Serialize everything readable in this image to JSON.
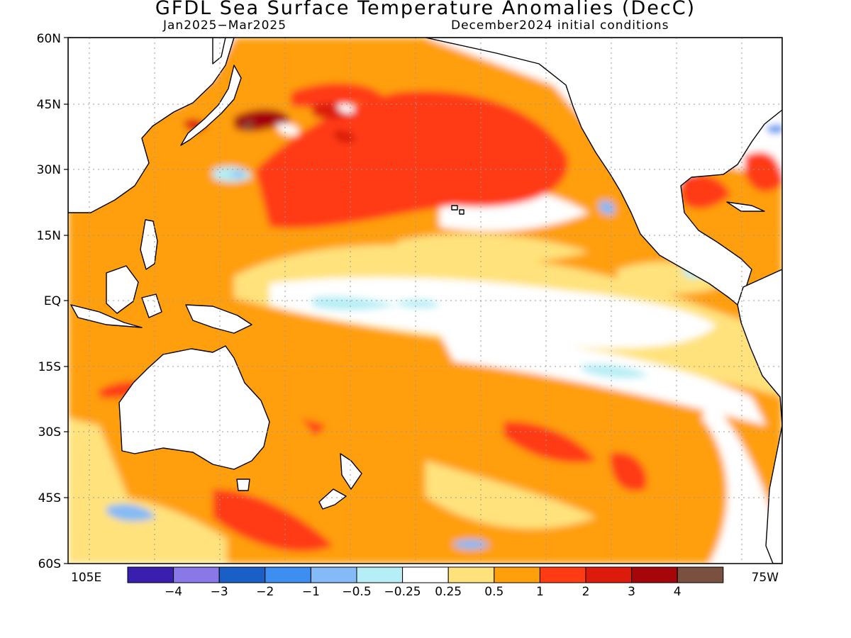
{
  "header": {
    "title": "GFDL Sea Surface Temperature Anomalies (DecC)",
    "period": "Jan2025−Mar2025",
    "init": "December2024 initial conditions"
  },
  "map": {
    "lat_labels": [
      "60N",
      "45N",
      "30N",
      "15N",
      "EQ",
      "15S",
      "30S",
      "45S",
      "60S"
    ],
    "lon_labels": {
      "west": "105E",
      "east": "75W"
    },
    "gridlines": "dotted",
    "colorbar": {
      "colors": [
        "#3a1fae",
        "#8a78e8",
        "#1a5ec8",
        "#3c8ef0",
        "#84baf5",
        "#b6eef5",
        "#ffffff",
        "#ffe27c",
        "#ff9f0a",
        "#ff3b14",
        "#dc1b0c",
        "#a5060a",
        "#7a5040"
      ],
      "ticks": [
        "−4",
        "−3",
        "−2",
        "−1",
        "−0.5",
        "−0.25",
        "0.25",
        "0.5",
        "1",
        "2",
        "3",
        "4"
      ]
    }
  }
}
